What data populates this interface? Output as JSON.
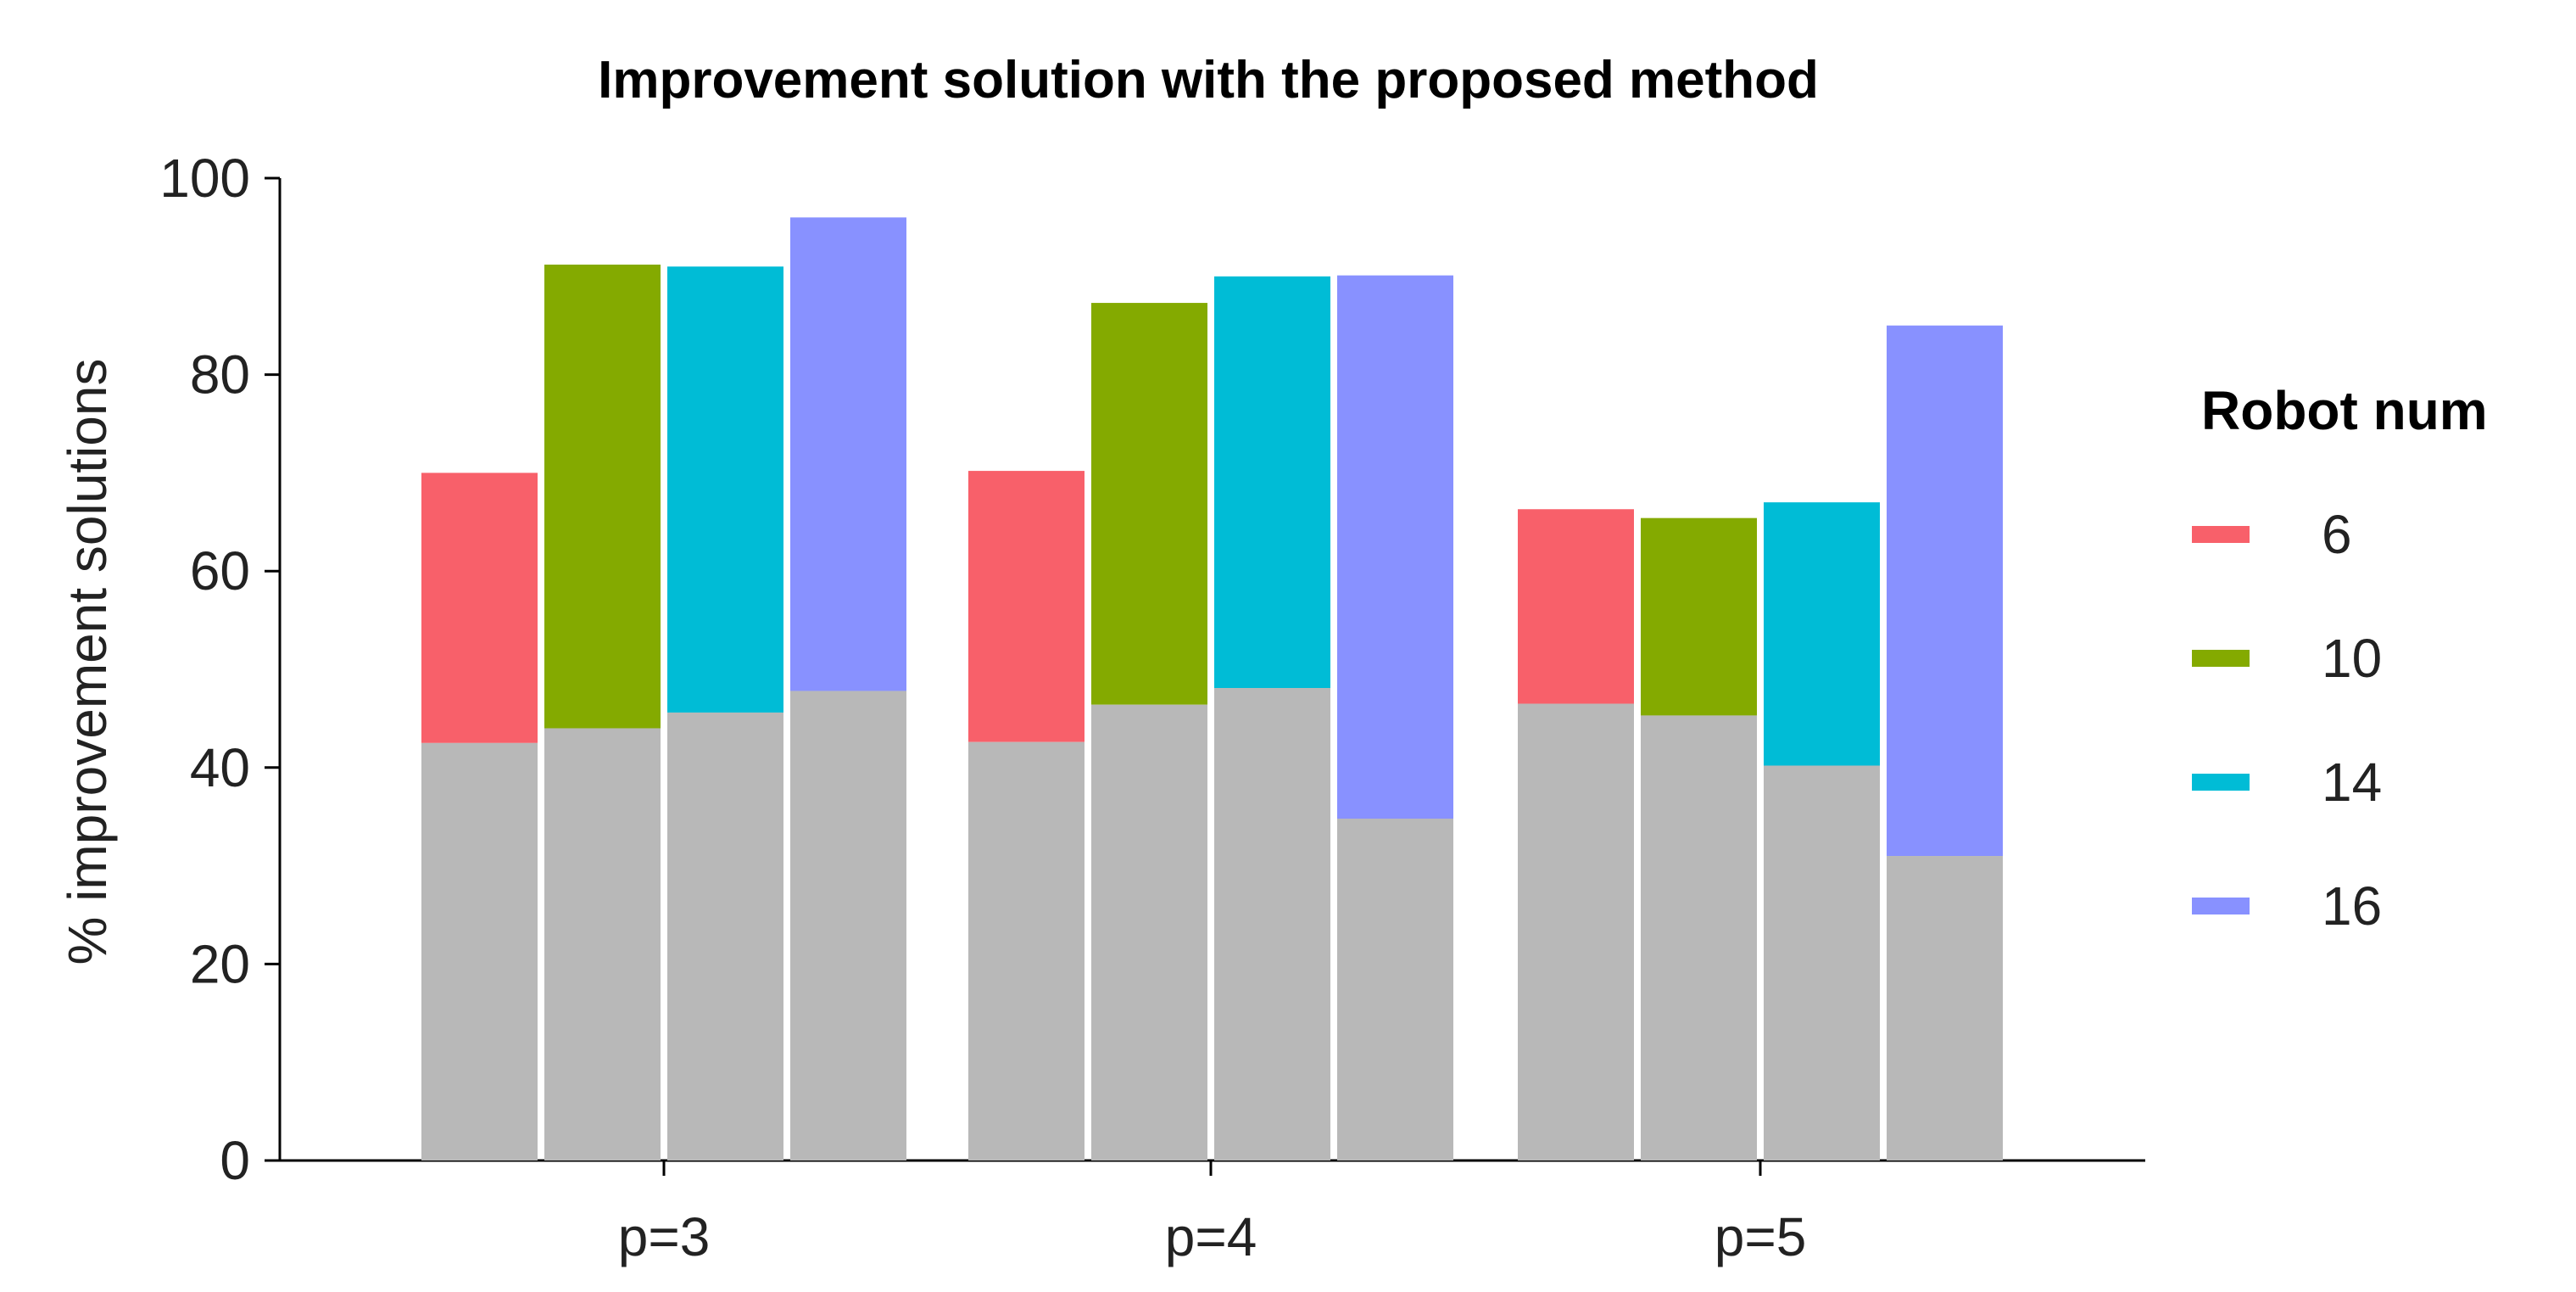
{
  "chart_data": {
    "type": "bar",
    "title": "Improvement solution with the proposed method",
    "xlabel": "",
    "ylabel": "% improvement solutions",
    "ylim": [
      0,
      100
    ],
    "yticks": [
      0,
      20,
      40,
      60,
      80,
      100
    ],
    "categories": [
      "p=3",
      "p=4",
      "p=5"
    ],
    "legend_title": "Robot num",
    "legend_position": "right",
    "grid": false,
    "baseline_color": "#b8b8b8",
    "series": [
      {
        "name": "6",
        "color": "#f8606a",
        "values": [
          70.0,
          70.2,
          66.3
        ],
        "base_values": [
          42.5,
          42.6,
          46.5
        ]
      },
      {
        "name": "10",
        "color": "#84aa00",
        "values": [
          91.2,
          87.3,
          65.4
        ],
        "base_values": [
          44.0,
          46.4,
          45.3
        ]
      },
      {
        "name": "14",
        "color": "#00bcd6",
        "values": [
          91.0,
          90.0,
          67.0
        ],
        "base_values": [
          45.6,
          48.1,
          40.2
        ]
      },
      {
        "name": "16",
        "color": "#8891ff",
        "values": [
          96.0,
          90.1,
          85.0
        ],
        "base_values": [
          47.8,
          34.8,
          31.0
        ]
      }
    ]
  }
}
